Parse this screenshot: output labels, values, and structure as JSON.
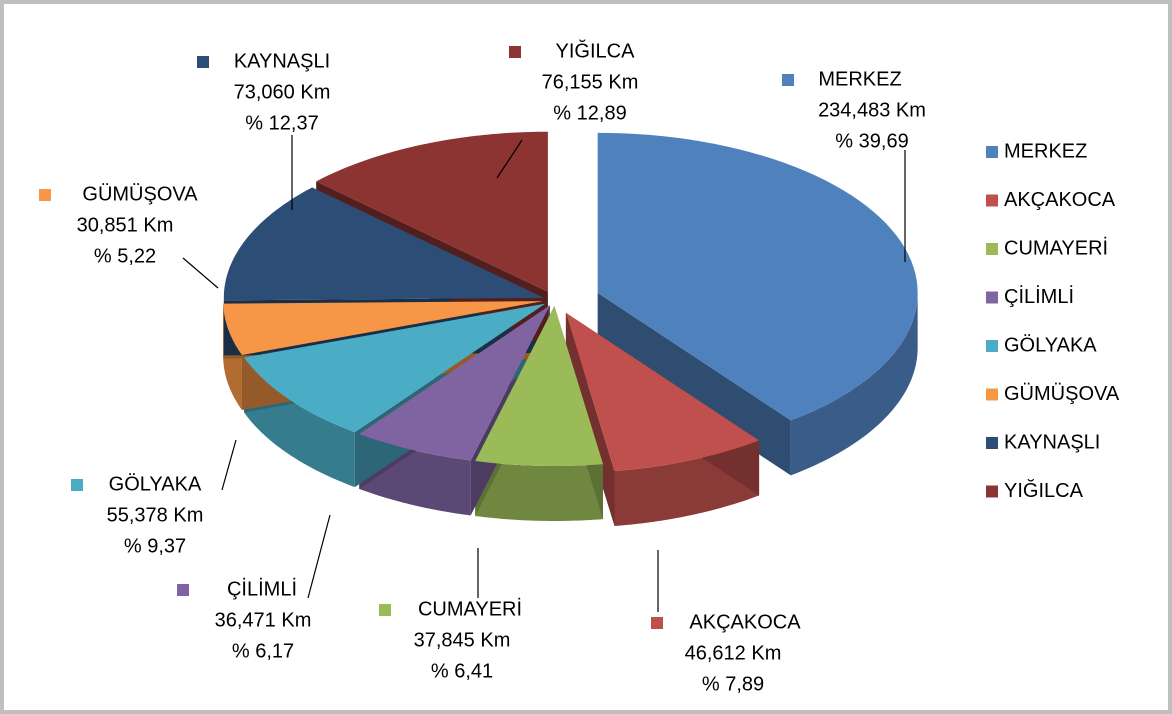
{
  "chart_data": {
    "type": "pie",
    "categories": [
      "MERKEZ",
      "AKÇAKOCA",
      "CUMAYERİ",
      "ÇİLİMLİ",
      "GÖLYAKA",
      "GÜMÜŞOVA",
      "KAYNAŞLI",
      "YIĞILCA"
    ],
    "values": [
      234.483,
      46.612,
      37.845,
      36.471,
      55.378,
      30.851,
      73.06,
      76.155
    ],
    "value_labels": [
      "234,483 Km",
      "46,612 Km",
      "37,845 Km",
      "36,471 Km",
      "55,378 Km",
      "30,851 Km",
      "73,060 Km",
      "76,155 Km"
    ],
    "percents": [
      39.69,
      7.89,
      6.41,
      6.17,
      9.37,
      5.22,
      12.37,
      12.89
    ],
    "percent_labels": [
      "% 39,69",
      "% 7,89",
      "% 6,41",
      "% 6,17",
      "% 9,37",
      "% 5,22",
      "% 12,37",
      "% 12,89"
    ],
    "colors": [
      "#4f81bd",
      "#c0504d",
      "#9bbb59",
      "#8064a2",
      "#4bacc6",
      "#f79646",
      "#2c4d75",
      "#8b3432"
    ],
    "legend": "right"
  }
}
